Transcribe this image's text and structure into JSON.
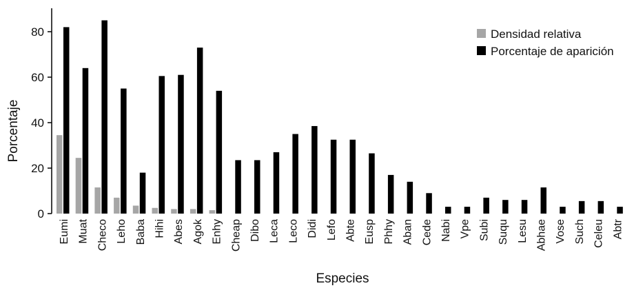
{
  "chart_data": {
    "type": "bar",
    "xlabel": "Especies",
    "ylabel": "Porcentaje",
    "ylim": [
      0,
      90
    ],
    "yticks": [
      0,
      20,
      40,
      60,
      80
    ],
    "grid": false,
    "legend_position": "top-right",
    "categories": [
      "Eumi",
      "Muat",
      "Checo",
      "Leho",
      "Baba",
      "Hihi",
      "Abes",
      "Agok",
      "Enhy",
      "Cheap",
      "Dibo",
      "Leca",
      "Leco",
      "Didi",
      "Lefo",
      "Abte",
      "Eusp",
      "Phhy",
      "Aban",
      "Cede",
      "Nabi",
      "Vpe",
      "Subi",
      "Suqu",
      "Lesu",
      "Abhae",
      "Vose",
      "Such",
      "Celeu",
      "Abtr"
    ],
    "series": [
      {
        "name": "Densidad relativa",
        "color": "#a6a6a6",
        "values": [
          34.5,
          24.5,
          11.5,
          7,
          3.5,
          2.5,
          2,
          2,
          1.5,
          0,
          0,
          0,
          0,
          0,
          0,
          0,
          0,
          0,
          0,
          0,
          0,
          0,
          0,
          0,
          0,
          0,
          0,
          0,
          0,
          0
        ]
      },
      {
        "name": "Porcentaje de aparición",
        "color": "#000000",
        "values": [
          82,
          64,
          85,
          55,
          18,
          60.5,
          61,
          73,
          54,
          23.5,
          23.5,
          27,
          35,
          38.5,
          32.5,
          32.5,
          26.5,
          17,
          14,
          9,
          3,
          3,
          7,
          6,
          6,
          11.5,
          3,
          5.5,
          5.5,
          3
        ]
      }
    ]
  }
}
